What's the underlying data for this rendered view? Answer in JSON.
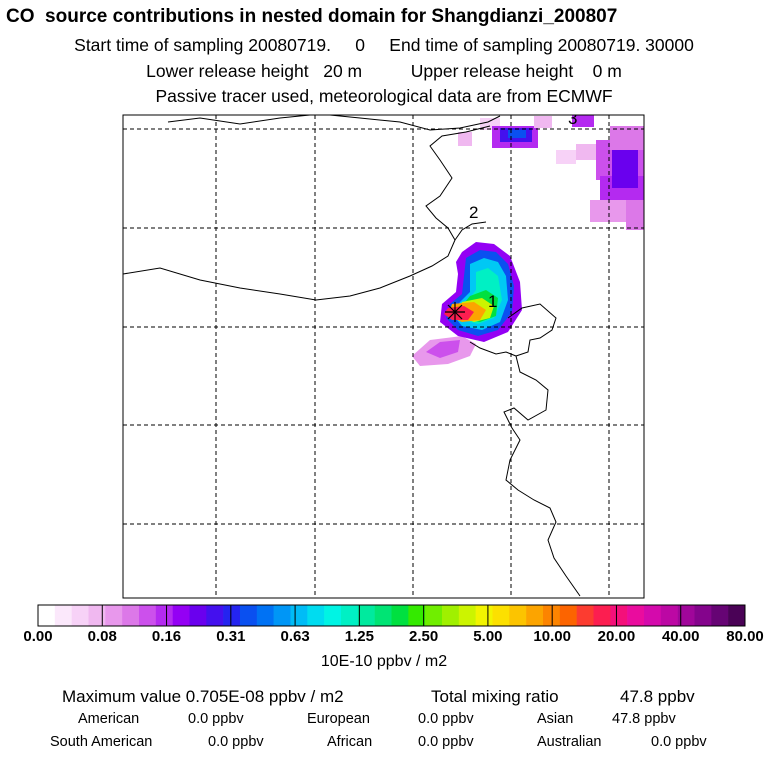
{
  "header": {
    "title": "CO  source contributions in nested domain for Shangdianzi_200807",
    "line2": "Start time of sampling 20080719.     0     End time of sampling 20080719. 30000",
    "line3": "Lower release height   20 m          Upper release height    0 m",
    "line4": "Passive tracer used, meteorological data are from ECMWF"
  },
  "map": {
    "contour_labels": [
      "1",
      "2",
      "3"
    ]
  },
  "colorbar": {
    "tick_labels": [
      "0.00",
      "0.08",
      "0.16",
      "0.31",
      "0.63",
      "1.25",
      "2.50",
      "5.00",
      "10.00",
      "20.00",
      "40.00",
      "80.00"
    ],
    "colors": [
      "#ffffff",
      "#fbe8fb",
      "#f7d2f7",
      "#f0b8f0",
      "#e898ec",
      "#dc78e8",
      "#cc50ec",
      "#b42af0",
      "#9400f4",
      "#6a00ee",
      "#4410ee",
      "#2424f0",
      "#0a50f0",
      "#0072f4",
      "#0096f6",
      "#00bcf6",
      "#00dcf0",
      "#00f4e4",
      "#00f0c4",
      "#00ea9e",
      "#00e474",
      "#00e040",
      "#34ea00",
      "#70ee00",
      "#a0f000",
      "#ccf400",
      "#f2f400",
      "#fce000",
      "#fcc400",
      "#fca400",
      "#fc8400",
      "#fc6400",
      "#fc3c30",
      "#fc1e50",
      "#f4107a",
      "#ea0c9e",
      "#d40aac",
      "#bc08a4",
      "#a0069a",
      "#84048c",
      "#660474",
      "#4a0256"
    ],
    "unit": "10E-10 ppbv / m2"
  },
  "stats": {
    "max_label": "Maximum value  0.705E-08 ppbv / m2",
    "total_label": "Total mixing ratio",
    "total_value": "47.8 ppbv",
    "regions": [
      {
        "name": "American",
        "value": "0.0 ppbv"
      },
      {
        "name": "European",
        "value": "0.0 ppbv"
      },
      {
        "name": "Asian",
        "value": "47.8 ppbv"
      },
      {
        "name": "South American",
        "value": "0.0 ppbv"
      },
      {
        "name": "African",
        "value": "0.0 ppbv"
      },
      {
        "name": "Australian",
        "value": "0.0 ppbv"
      }
    ]
  }
}
